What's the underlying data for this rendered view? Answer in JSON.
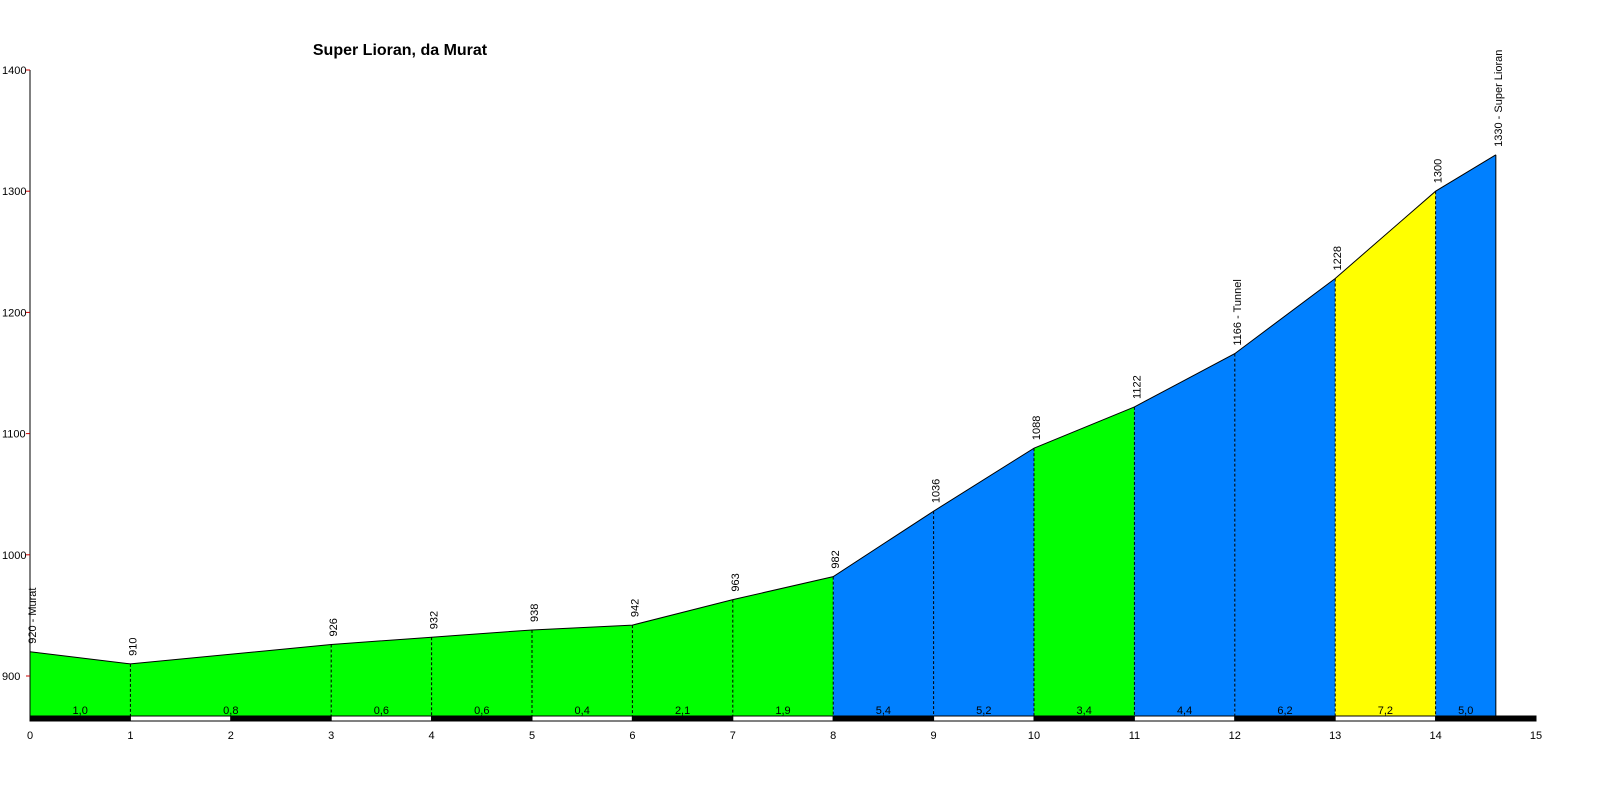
{
  "chart_data": {
    "type": "area",
    "title": "Super Lioran, da Murat",
    "xlabel": "",
    "ylabel": "",
    "xlim": [
      0,
      15
    ],
    "ylim": [
      865,
      1400
    ],
    "y_ticks": [
      "900",
      "1000",
      "1100",
      "1200",
      "1300",
      "1400"
    ],
    "x_ticks": [
      "0",
      "1",
      "2",
      "3",
      "4",
      "5",
      "6",
      "7",
      "8",
      "9",
      "10",
      "11",
      "12",
      "13",
      "14",
      "15"
    ],
    "profile": [
      {
        "km": 0,
        "alt": 920,
        "label": "920 - Murat"
      },
      {
        "km": 1,
        "alt": 910,
        "label": "910"
      },
      {
        "km": 3,
        "alt": 926,
        "label": "926"
      },
      {
        "km": 4,
        "alt": 932,
        "label": "932"
      },
      {
        "km": 5,
        "alt": 938,
        "label": "938"
      },
      {
        "km": 6,
        "alt": 942,
        "label": "942"
      },
      {
        "km": 7,
        "alt": 963,
        "label": "963"
      },
      {
        "km": 8,
        "alt": 982,
        "label": "982"
      },
      {
        "km": 9,
        "alt": 1036,
        "label": "1036"
      },
      {
        "km": 10,
        "alt": 1088,
        "label": "1088"
      },
      {
        "km": 11,
        "alt": 1122,
        "label": "1122"
      },
      {
        "km": 12,
        "alt": 1166,
        "label": "1166 - Tunnel"
      },
      {
        "km": 13,
        "alt": 1228,
        "label": "1228"
      },
      {
        "km": 14,
        "alt": 1300,
        "label": "1300"
      },
      {
        "km": 14.6,
        "alt": 1330,
        "label": "1330 - Super Lioran"
      }
    ],
    "segments": [
      {
        "from": 0,
        "to": 1,
        "gradient": "1,0",
        "color": "#00ff00"
      },
      {
        "from": 1,
        "to": 3,
        "gradient": "0,8",
        "color": "#00ff00"
      },
      {
        "from": 3,
        "to": 4,
        "gradient": "0,6",
        "color": "#00ff00"
      },
      {
        "from": 4,
        "to": 5,
        "gradient": "0,6",
        "color": "#00ff00"
      },
      {
        "from": 5,
        "to": 6,
        "gradient": "0,4",
        "color": "#00ff00"
      },
      {
        "from": 6,
        "to": 7,
        "gradient": "2,1",
        "color": "#00ff00"
      },
      {
        "from": 7,
        "to": 8,
        "gradient": "1,9",
        "color": "#00ff00"
      },
      {
        "from": 8,
        "to": 9,
        "gradient": "5,4",
        "color": "#0080ff"
      },
      {
        "from": 9,
        "to": 10,
        "gradient": "5,2",
        "color": "#0080ff"
      },
      {
        "from": 10,
        "to": 11,
        "gradient": "3,4",
        "color": "#00ff00"
      },
      {
        "from": 11,
        "to": 12,
        "gradient": "4,4",
        "color": "#0080ff"
      },
      {
        "from": 12,
        "to": 13,
        "gradient": "6,2",
        "color": "#0080ff"
      },
      {
        "from": 13,
        "to": 14,
        "gradient": "7,2",
        "color": "#ffff00"
      },
      {
        "from": 14,
        "to": 14.6,
        "gradient": "5,0",
        "color": "#0080ff"
      }
    ],
    "colors": {
      "low_gradient": "#00ff00",
      "mid_gradient": "#0080ff",
      "high_gradient": "#ffff00",
      "outline": "#000000",
      "axis_tick": "#cc0000"
    }
  }
}
